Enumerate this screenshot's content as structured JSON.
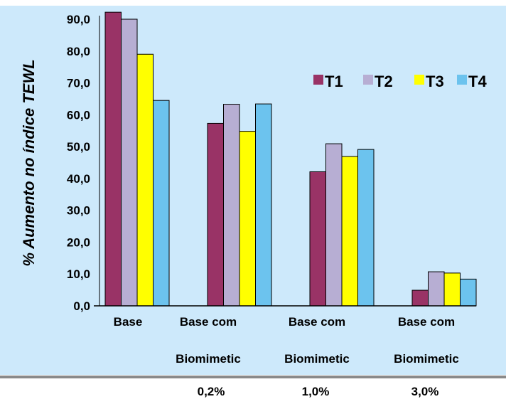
{
  "chart_data": {
    "type": "bar",
    "ylabel": "% Aumento no índice TEWL",
    "xlabel": "",
    "ylim": [
      0,
      90
    ],
    "yticks": [
      "0,0",
      "10,0",
      "20,0",
      "30,0",
      "40,0",
      "50,0",
      "60,0",
      "70,0",
      "80,0",
      "90,0"
    ],
    "categories": [
      {
        "lines": [
          "Base"
        ]
      },
      {
        "lines": [
          "Base com",
          "Biomimetic",
          "0,2%"
        ]
      },
      {
        "lines": [
          "Base com",
          "Biomimetic",
          "1,0%"
        ]
      },
      {
        "lines": [
          "Base com",
          "Biomimetic",
          "3,0%"
        ]
      }
    ],
    "series": [
      {
        "name": "T1",
        "color": "#993366",
        "values": [
          92.2,
          57.3,
          42.1,
          4.9
        ]
      },
      {
        "name": "T2",
        "color": "#b7aed3",
        "values": [
          90.0,
          63.3,
          50.9,
          10.7
        ]
      },
      {
        "name": "T3",
        "color": "#ffff00",
        "values": [
          79.0,
          54.8,
          46.9,
          10.3
        ]
      },
      {
        "name": "T4",
        "color": "#6cc3ee",
        "values": [
          64.5,
          63.4,
          49.1,
          8.4
        ]
      }
    ],
    "legend_position": "top-right",
    "grid": false,
    "background": "#cde9fb"
  }
}
